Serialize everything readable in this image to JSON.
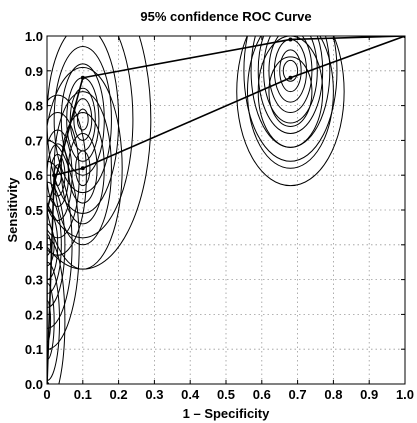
{
  "chart_data": {
    "type": "line",
    "title": "95% confidence ROC Curve",
    "xlabel": "1 – Specificity",
    "ylabel": "Sensitivity",
    "xlim": [
      0,
      1
    ],
    "ylim": [
      0,
      1
    ],
    "x_ticks": [
      "0",
      "0.1",
      "0.2",
      "0.3",
      "0.4",
      "0.5",
      "0.6",
      "0.7",
      "0.8",
      "0.9",
      "1.0"
    ],
    "y_ticks": [
      "0.0",
      "0.1",
      "0.2",
      "0.3",
      "0.4",
      "0.5",
      "0.6",
      "0.7",
      "0.8",
      "0.9",
      "1.0"
    ],
    "grid": true,
    "series": [
      {
        "x": [
          0,
          0.0,
          0.1,
          0.68,
          1.0
        ],
        "y": [
          0,
          0.5,
          0.88,
          0.99,
          1.0
        ]
      },
      {
        "x": [
          0,
          0.02,
          0.1,
          0.68,
          1.0
        ],
        "y": [
          0,
          0.6,
          0.62,
          0.88,
          1.0
        ]
      }
    ],
    "confidence_regions": [
      {
        "cx": 0.0,
        "cy": 0.18,
        "rx": [
          0.01,
          0.02,
          0.035,
          0.05
        ],
        "ry": [
          0.06,
          0.11,
          0.17,
          0.24
        ]
      },
      {
        "cx": 0.0,
        "cy": 0.4,
        "rx": [
          0.01,
          0.02,
          0.03,
          0.04,
          0.05,
          0.07,
          0.09
        ],
        "ry": [
          0.03,
          0.06,
          0.1,
          0.14,
          0.18,
          0.24,
          0.3
        ]
      },
      {
        "cx": 0.03,
        "cy": 0.6,
        "rx": [
          0.01,
          0.02,
          0.03,
          0.04,
          0.06,
          0.08
        ],
        "ry": [
          0.03,
          0.06,
          0.09,
          0.13,
          0.18,
          0.23
        ]
      },
      {
        "cx": 0.1,
        "cy": 0.76,
        "rx": [
          0.015,
          0.025,
          0.035,
          0.045,
          0.06,
          0.08,
          0.1,
          0.14,
          0.19
        ],
        "ry": [
          0.03,
          0.06,
          0.09,
          0.12,
          0.16,
          0.21,
          0.27,
          0.34,
          0.43
        ]
      },
      {
        "cx": 0.1,
        "cy": 0.62,
        "rx": [
          0.02,
          0.04,
          0.06,
          0.08,
          0.11
        ],
        "ry": [
          0.05,
          0.1,
          0.16,
          0.22,
          0.29
        ]
      },
      {
        "cx": 0.68,
        "cy": 0.9,
        "rx": [
          0.02,
          0.03,
          0.045,
          0.06,
          0.075,
          0.09,
          0.11,
          0.13
        ],
        "ry": [
          0.03,
          0.06,
          0.09,
          0.12,
          0.15,
          0.18,
          0.22,
          0.26
        ]
      },
      {
        "cx": 0.68,
        "cy": 0.84,
        "rx": [
          0.06,
          0.09,
          0.12,
          0.15
        ],
        "ry": [
          0.1,
          0.16,
          0.22,
          0.27
        ]
      }
    ]
  }
}
